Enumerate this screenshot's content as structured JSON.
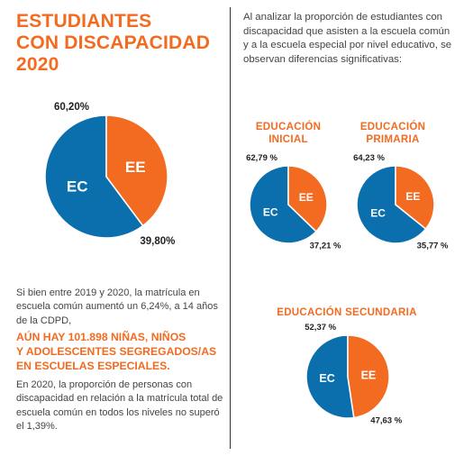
{
  "title_lines": [
    "ESTUDIANTES",
    "CON DISCAPACIDAD",
    "2020"
  ],
  "intro": "Al analizar la proporción de estudiantes con discapacidad que asisten a la escuela común y a la escuela especial por nivel educativo, se observan diferencias significativas:",
  "paragraph1": "Si bien entre 2019 y 2020, la matrícula en escuela común aumentó un 6,24%, a 14 años de la CDPD,",
  "highlight_lines": [
    "AÚN HAY 101.898 NIÑAS, NIÑOS",
    "Y ADOLESCENTES SEGREGADOS/AS",
    "EN ESCUELAS ESPECIALES."
  ],
  "paragraph2": "En 2020, la proporción de personas con discapacidad en relación a la matrícula total de escuela común en todos los niveles no superó el 1,39%.",
  "colors": {
    "EC": "#0b6fae",
    "EE": "#f26b21",
    "accent": "#f26b21"
  },
  "chart_data": [
    {
      "type": "pie",
      "title": "",
      "slices": [
        {
          "label": "EC",
          "value": 60.2,
          "value_label": "60,20%"
        },
        {
          "label": "EE",
          "value": 39.8,
          "value_label": "39,80%"
        }
      ]
    },
    {
      "type": "pie",
      "title": "EDUCACIÓN INICIAL",
      "slices": [
        {
          "label": "EC",
          "value": 62.79,
          "value_label": "62,79 %"
        },
        {
          "label": "EE",
          "value": 37.21,
          "value_label": "37,21 %"
        }
      ]
    },
    {
      "type": "pie",
      "title": "EDUCACIÓN PRIMARIA",
      "slices": [
        {
          "label": "EC",
          "value": 64.23,
          "value_label": "64,23 %"
        },
        {
          "label": "EE",
          "value": 35.77,
          "value_label": "35,77 %"
        }
      ]
    },
    {
      "type": "pie",
      "title": "EDUCACIÓN SECUNDARIA",
      "slices": [
        {
          "label": "EC",
          "value": 52.37,
          "value_label": "52,37 %"
        },
        {
          "label": "EE",
          "value": 47.63,
          "value_label": "47,63 %"
        }
      ]
    }
  ]
}
